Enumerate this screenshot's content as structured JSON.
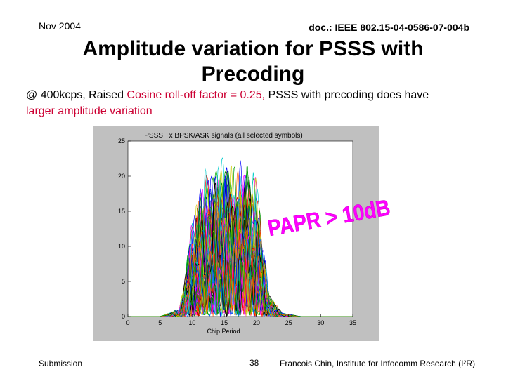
{
  "header": {
    "date": "Nov 2004",
    "doc_id": "doc.: IEEE 802.15-04-0586-07-004b"
  },
  "slide": {
    "title_line1": "Amplitude variation for PSSS with",
    "title_line2": "Precoding",
    "subtitle_part1": "@ 400kcps, Raised ",
    "subtitle_part2": "Cosine roll-off factor = 0.25, ",
    "subtitle_part3": "PSSS with precoding does have ",
    "subtitle_part4": "larger amplitude variation"
  },
  "chart_data": {
    "type": "line",
    "title": "PSSS Tx BPSK/ASK signals (all selected symbols)",
    "xlabel": "Chip Period",
    "ylabel": "",
    "xlim": [
      0,
      35
    ],
    "ylim": [
      0,
      25
    ],
    "x_ticks": [
      "0",
      "5",
      "10",
      "15",
      "20",
      "25",
      "30",
      "35"
    ],
    "y_ticks": [
      "0",
      "5",
      "10",
      "15",
      "20",
      "25"
    ],
    "annotation": "PAPR > 10dB",
    "envelope": {
      "x": [
        0,
        5,
        8,
        9,
        10,
        12,
        15,
        18,
        20,
        21,
        22,
        24,
        27,
        35
      ],
      "y": [
        0,
        0,
        1,
        6,
        13,
        19,
        21,
        20,
        18,
        10,
        3,
        0.5,
        0,
        0
      ]
    },
    "colors": [
      "#0000ff",
      "#ff0000",
      "#00aa00",
      "#ff00ff",
      "#00cccc",
      "#cccc00",
      "#000000",
      "#0066ff",
      "#ff6600",
      "#009900"
    ]
  },
  "footer": {
    "left": "Submission",
    "page": "38",
    "right": "Francois Chin, Institute for Infocomm Research (I²R)"
  }
}
